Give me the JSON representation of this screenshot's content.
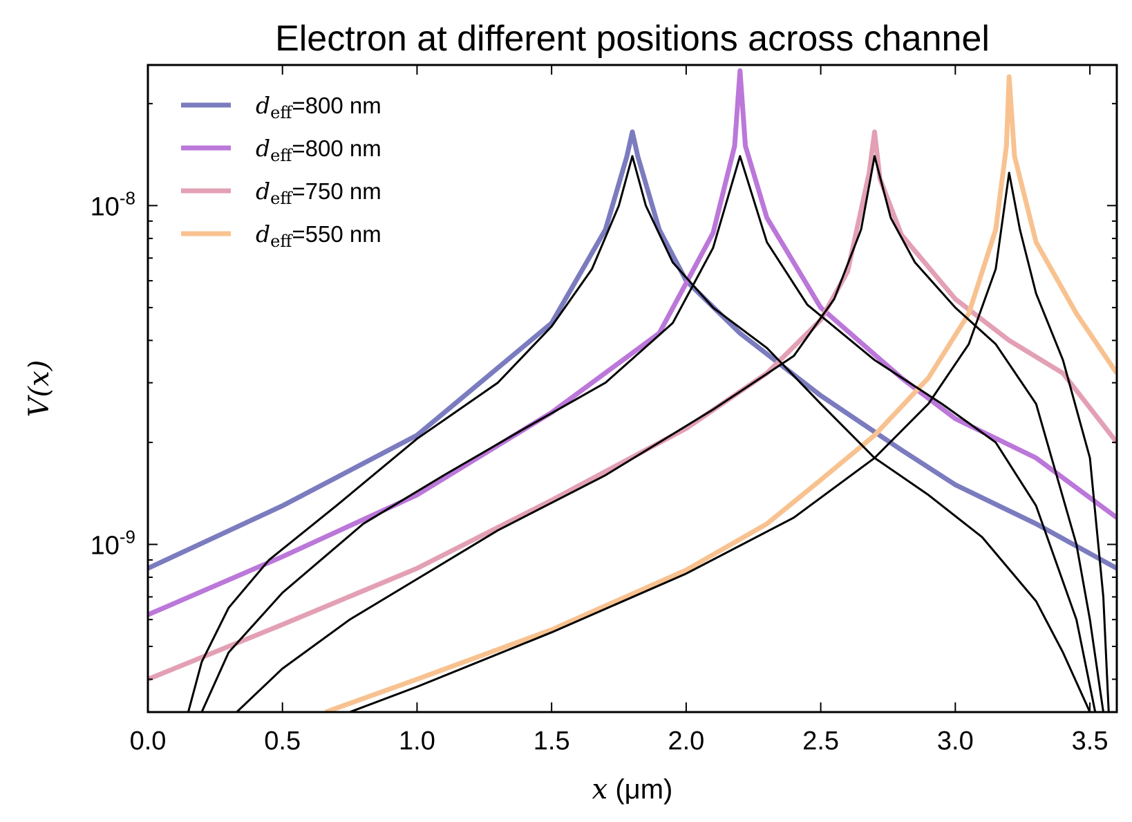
{
  "chart_data": {
    "type": "line",
    "title": "Electron at different positions across channel",
    "xlabel_var": "x",
    "xlabel_unit": " (μm)",
    "ylabel_var": "V(x)",
    "xlim": [
      0.0,
      3.6
    ],
    "ylim": [
      3.2e-10,
      2.6e-08
    ],
    "yscale": "log",
    "grid": false,
    "legend_position": "top-left",
    "x_ticks": [
      "0.0",
      "0.5",
      "1.0",
      "1.5",
      "2.0",
      "2.5",
      "3.0",
      "3.5"
    ],
    "y_ticks": [
      {
        "base": "10",
        "exp": "-8",
        "value": 1e-08
      },
      {
        "base": "10",
        "exp": "-9",
        "value": 1e-09
      }
    ],
    "legend_symbol": "d",
    "legend_subscript": "eff",
    "series": [
      {
        "name": "=800 nm",
        "color": "#7b7bbf",
        "points": [
          [
            0.0,
            8.5e-10
          ],
          [
            0.5,
            1.3e-09
          ],
          [
            1.0,
            2.1e-09
          ],
          [
            1.5,
            4.5e-09
          ],
          [
            1.7,
            8.5e-09
          ],
          [
            1.78,
            1.4e-08
          ],
          [
            1.8,
            1.65e-08
          ],
          [
            1.82,
            1.4e-08
          ],
          [
            1.9,
            8.5e-09
          ],
          [
            2.0,
            6e-09
          ],
          [
            2.2,
            4.2e-09
          ],
          [
            2.5,
            2.75e-09
          ],
          [
            2.8,
            1.9e-09
          ],
          [
            3.0,
            1.5e-09
          ],
          [
            3.3,
            1.15e-09
          ],
          [
            3.6,
            8.5e-10
          ]
        ]
      },
      {
        "name": "=800 nm",
        "color": "#bb77d9",
        "points": [
          [
            0.0,
            6.2e-10
          ],
          [
            0.5,
            9.2e-10
          ],
          [
            1.0,
            1.4e-09
          ],
          [
            1.5,
            2.45e-09
          ],
          [
            1.9,
            4.2e-09
          ],
          [
            2.1,
            8.3e-09
          ],
          [
            2.18,
            1.5e-08
          ],
          [
            2.2,
            2.5e-08
          ],
          [
            2.22,
            1.5e-08
          ],
          [
            2.3,
            9.2e-09
          ],
          [
            2.5,
            5e-09
          ],
          [
            2.8,
            3.1e-09
          ],
          [
            3.0,
            2.35e-09
          ],
          [
            3.3,
            1.8e-09
          ],
          [
            3.6,
            1.2e-09
          ]
        ]
      },
      {
        "name": "=750 nm",
        "color": "#e3a0b4",
        "points": [
          [
            0.0,
            4e-10
          ],
          [
            0.5,
            5.8e-10
          ],
          [
            1.0,
            8.5e-10
          ],
          [
            1.5,
            1.35e-09
          ],
          [
            2.0,
            2.2e-09
          ],
          [
            2.3,
            3.2e-09
          ],
          [
            2.5,
            4.6e-09
          ],
          [
            2.6,
            6.4e-09
          ],
          [
            2.68,
            1.25e-08
          ],
          [
            2.7,
            1.65e-08
          ],
          [
            2.72,
            1.2e-08
          ],
          [
            2.8,
            8.2e-09
          ],
          [
            3.0,
            5.3e-09
          ],
          [
            3.2,
            4e-09
          ],
          [
            3.4,
            3.2e-09
          ],
          [
            3.6,
            2e-09
          ]
        ]
      },
      {
        "name": "=550 nm",
        "color": "#f8c290",
        "points": [
          [
            0.66,
            3.2e-10
          ],
          [
            1.0,
            4e-10
          ],
          [
            1.5,
            5.6e-10
          ],
          [
            2.0,
            8.4e-10
          ],
          [
            2.3,
            1.15e-09
          ],
          [
            2.5,
            1.55e-09
          ],
          [
            2.7,
            2.1e-09
          ],
          [
            2.9,
            3.1e-09
          ],
          [
            3.05,
            4.8e-09
          ],
          [
            3.15,
            8.5e-09
          ],
          [
            3.19,
            1.5e-08
          ],
          [
            3.2,
            2.4e-08
          ],
          [
            3.22,
            1.4e-08
          ],
          [
            3.3,
            7.8e-09
          ],
          [
            3.45,
            4.8e-09
          ],
          [
            3.6,
            3.2e-09
          ]
        ]
      },
      {
        "name": "",
        "color": "#000000",
        "points": [
          [
            0.15,
            3.2e-10
          ],
          [
            0.2,
            4.5e-10
          ],
          [
            0.3,
            6.5e-10
          ],
          [
            0.45,
            9e-10
          ],
          [
            0.7,
            1.3e-09
          ],
          [
            1.0,
            2.05e-09
          ],
          [
            1.3,
            3e-09
          ],
          [
            1.5,
            4.4e-09
          ],
          [
            1.65,
            6.5e-09
          ],
          [
            1.75,
            1e-08
          ],
          [
            1.8,
            1.4e-08
          ],
          [
            1.85,
            1e-08
          ],
          [
            1.95,
            6.8e-09
          ],
          [
            2.1,
            5e-09
          ],
          [
            2.3,
            3.8e-09
          ],
          [
            2.5,
            2.6e-09
          ],
          [
            2.7,
            1.8e-09
          ],
          [
            2.9,
            1.4e-09
          ],
          [
            3.1,
            1.05e-09
          ],
          [
            3.3,
            6.8e-10
          ],
          [
            3.4,
            4.8e-10
          ],
          [
            3.5,
            3.2e-10
          ]
        ]
      },
      {
        "name": "",
        "color": "#000000",
        "points": [
          [
            0.2,
            3.2e-10
          ],
          [
            0.3,
            4.8e-10
          ],
          [
            0.5,
            7.2e-10
          ],
          [
            0.8,
            1.15e-09
          ],
          [
            1.1,
            1.6e-09
          ],
          [
            1.4,
            2.2e-09
          ],
          [
            1.7,
            3e-09
          ],
          [
            1.95,
            4.5e-09
          ],
          [
            2.1,
            7.5e-09
          ],
          [
            2.2,
            1.4e-08
          ],
          [
            2.3,
            7.8e-09
          ],
          [
            2.45,
            5.1e-09
          ],
          [
            2.7,
            3.5e-09
          ],
          [
            2.95,
            2.6e-09
          ],
          [
            3.15,
            2e-09
          ],
          [
            3.3,
            1.3e-09
          ],
          [
            3.45,
            6e-10
          ],
          [
            3.52,
            3.2e-10
          ]
        ]
      },
      {
        "name": "",
        "color": "#000000",
        "points": [
          [
            0.33,
            3.2e-10
          ],
          [
            0.5,
            4.3e-10
          ],
          [
            0.75,
            6e-10
          ],
          [
            1.0,
            7.9e-10
          ],
          [
            1.3,
            1.1e-09
          ],
          [
            1.7,
            1.6e-09
          ],
          [
            2.1,
            2.5e-09
          ],
          [
            2.4,
            3.6e-09
          ],
          [
            2.55,
            5.3e-09
          ],
          [
            2.65,
            8.5e-09
          ],
          [
            2.7,
            1.4e-08
          ],
          [
            2.76,
            9.2e-09
          ],
          [
            2.85,
            6.8e-09
          ],
          [
            3.0,
            5e-09
          ],
          [
            3.15,
            3.9e-09
          ],
          [
            3.3,
            2.6e-09
          ],
          [
            3.45,
            1e-09
          ],
          [
            3.5,
            6e-10
          ],
          [
            3.55,
            3.2e-10
          ]
        ]
      },
      {
        "name": "",
        "color": "#000000",
        "points": [
          [
            0.75,
            3.2e-10
          ],
          [
            1.0,
            3.8e-10
          ],
          [
            1.5,
            5.5e-10
          ],
          [
            2.0,
            8.2e-10
          ],
          [
            2.4,
            1.2e-09
          ],
          [
            2.7,
            1.8e-09
          ],
          [
            2.9,
            2.6e-09
          ],
          [
            3.05,
            3.9e-09
          ],
          [
            3.15,
            6.5e-09
          ],
          [
            3.2,
            1.25e-08
          ],
          [
            3.24,
            8.5e-09
          ],
          [
            3.3,
            5.5e-09
          ],
          [
            3.4,
            3.5e-09
          ],
          [
            3.5,
            1.8e-09
          ],
          [
            3.55,
            7e-10
          ],
          [
            3.57,
            3.2e-10
          ]
        ]
      }
    ]
  }
}
